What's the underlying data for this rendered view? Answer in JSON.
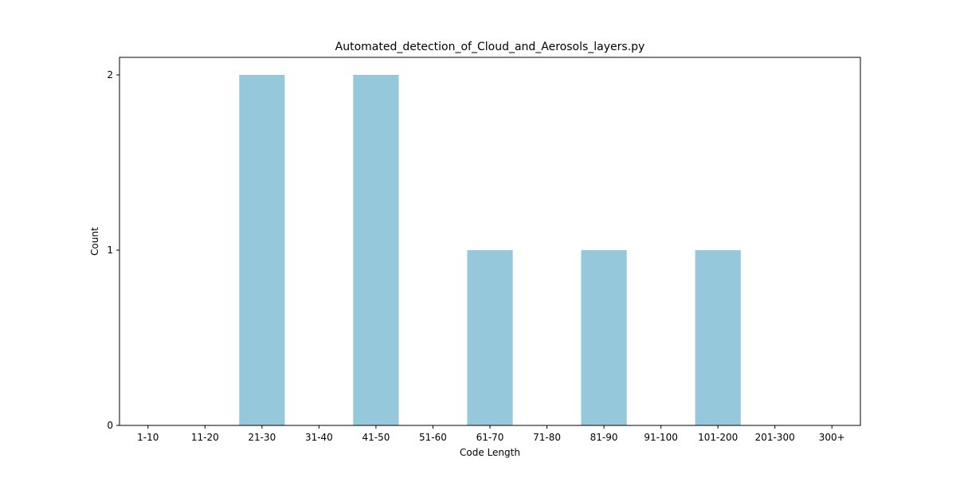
{
  "chart_data": {
    "type": "bar",
    "title": "Automated_detection_of_Cloud_and_Aerosols_layers.py",
    "xlabel": "Code Length",
    "ylabel": "Count",
    "categories": [
      "1-10",
      "11-20",
      "21-30",
      "31-40",
      "41-50",
      "51-60",
      "61-70",
      "71-80",
      "81-90",
      "91-100",
      "101-200",
      "201-300",
      "300+"
    ],
    "values": [
      0,
      0,
      2,
      0,
      2,
      0,
      1,
      0,
      1,
      0,
      1,
      0,
      0
    ],
    "ylim": [
      0,
      2.1
    ],
    "yticks": [
      0,
      1,
      2
    ],
    "bar_color": "#96c8dc",
    "grid": false,
    "legend": "none"
  }
}
